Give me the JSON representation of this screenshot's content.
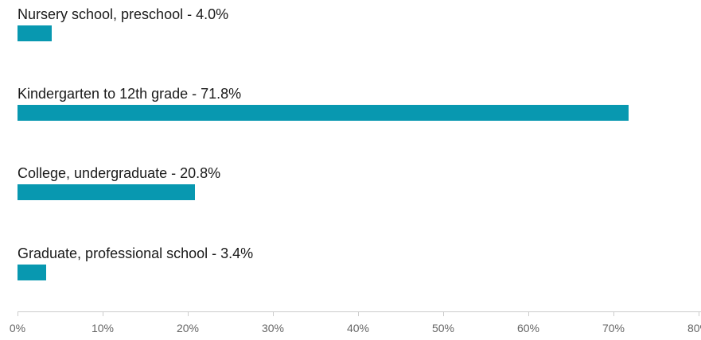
{
  "chart_data": {
    "type": "bar",
    "orientation": "horizontal",
    "categories": [
      "Nursery school, preschool",
      "Kindergarten to 12th grade",
      "College, undergraduate",
      "Graduate, professional school"
    ],
    "values": [
      4.0,
      71.8,
      20.8,
      3.4
    ],
    "data_labels": [
      "Nursery school, preschool - 4.0%",
      "Kindergarten to 12th grade - 71.8%",
      "College, undergraduate - 20.8%",
      "Graduate, professional school - 3.4%"
    ],
    "xlim": [
      0,
      80
    ],
    "x_ticks": [
      0,
      10,
      20,
      30,
      40,
      50,
      60,
      70,
      80
    ],
    "x_tick_labels": [
      "0%",
      "10%",
      "20%",
      "30%",
      "40%",
      "50%",
      "60%",
      "70%",
      "80%"
    ],
    "bar_color": "#0898b0",
    "grid": false,
    "legend": "none"
  }
}
